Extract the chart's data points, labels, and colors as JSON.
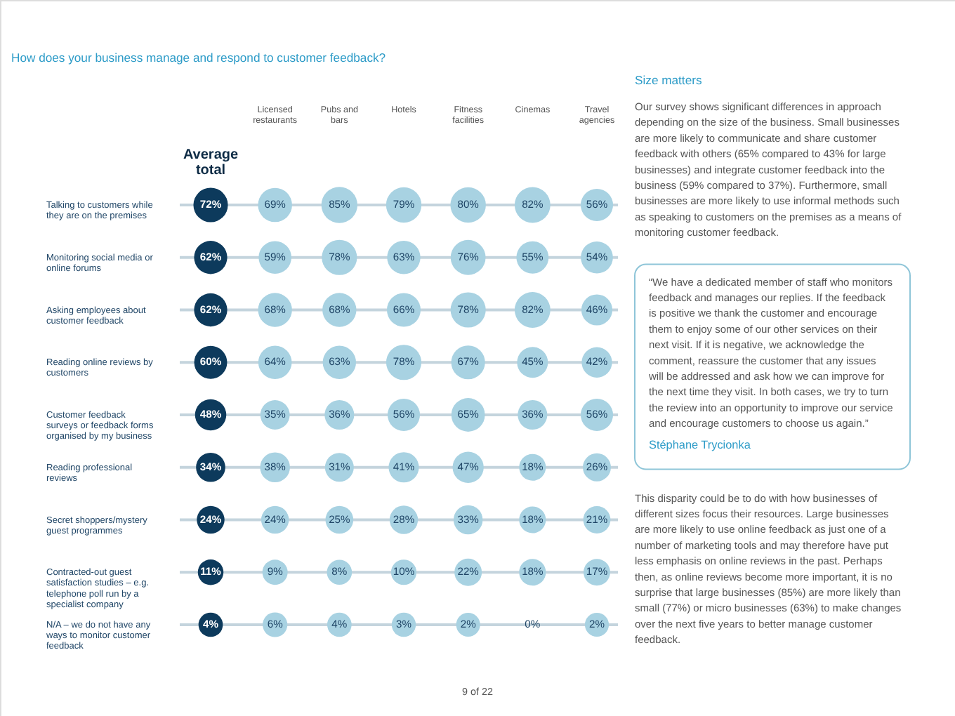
{
  "chart_data": [
    {
      "type": "heatmap",
      "title": "How does your business manage and respond to customer feedback?",
      "categories": [
        "Average total",
        "Licensed restaurants",
        "Pubs and bars",
        "Hotels",
        "Fitness facilities",
        "Cinemas",
        "Travel agencies"
      ],
      "y_categories": [
        "Talking to customers while they are on the premises",
        "Monitoring social media or online forums",
        "Asking employees about customer feedback",
        "Reading online reviews by customers",
        "Customer feedback surveys or feedback forms organised by my business",
        "Reading professional reviews",
        "Secret shoppers/mystery guest programmes",
        "Contracted-out guest satisfaction studies – e.g. telephone poll run by a specialist company",
        "N/A – we do not have any ways to monitor customer feedback"
      ],
      "cells": [
        [
          72,
          69,
          85,
          79,
          80,
          82,
          56
        ],
        [
          62,
          59,
          78,
          63,
          76,
          55,
          54
        ],
        [
          62,
          68,
          68,
          66,
          78,
          82,
          46
        ],
        [
          60,
          64,
          63,
          78,
          67,
          45,
          42
        ],
        [
          48,
          35,
          36,
          56,
          65,
          36,
          56
        ],
        [
          34,
          38,
          31,
          41,
          47,
          18,
          26
        ],
        [
          24,
          24,
          25,
          28,
          33,
          18,
          21
        ],
        [
          11,
          9,
          8,
          10,
          22,
          18,
          17
        ],
        [
          4,
          6,
          4,
          3,
          2,
          0,
          2
        ]
      ],
      "cell_labels": [
        [
          "72%",
          "69%",
          "85%",
          "79%",
          "80%",
          "82%",
          "56%"
        ],
        [
          "62%",
          "59%",
          "78%",
          "63%",
          "76%",
          "55%",
          "54%"
        ],
        [
          "62%",
          "68%",
          "68%",
          "66%",
          "78%",
          "82%",
          "46%"
        ],
        [
          "60%",
          "64%",
          "63%",
          "78%",
          "67%",
          "45%",
          "42%"
        ],
        [
          "48%",
          "35%",
          "36%",
          "56%",
          "65%",
          "36%",
          "56%"
        ],
        [
          "34%",
          "38%",
          "31%",
          "41%",
          "47%",
          "18%",
          "26%"
        ],
        [
          "24%",
          "24%",
          "25%",
          "28%",
          "33%",
          "18%",
          "21%"
        ],
        [
          "11%",
          "9%",
          "8%",
          "10%",
          "22%",
          "18%",
          "17%"
        ],
        [
          "4%",
          "6%",
          "4%",
          "3%",
          "2%",
          "0%",
          "2%"
        ]
      ],
      "colors": [
        "#0d3a5c",
        "#a8d2e2",
        "#a8d2e2",
        "#a8d2e2",
        "#a8d2e2",
        "#a8d2e2",
        "#a8d2e2"
      ],
      "grid": "y",
      "annotations": [
        "9 of 22"
      ]
    },
    {
      "type": "other",
      "title": "Size matters",
      "annotations": [
        "Our survey shows significant differences in approach depending on the size of the business. Small businesses are more likely to communicate and share customer feedback with others (65% compared to 43% for large businesses) and integrate customer feedback into the business (59% compared to 37%). Furthermore, small businesses are more likely to use informal methods such as speaking to customers on the premises as a means of monitoring customer feedback.",
        "“We have a dedicated member of staff who monitors feedback and manages our replies. If the feedback is positive we thank the customer and encourage them to enjoy some of our other services on their next visit. If it is negative, we acknowledge the comment, reassure the customer that any issues will be addressed and ask how we can improve for the next time they visit. In both cases, we try to turn the review into an opportunity to improve our service and encourage customers to choose us again.”",
        "Stéphane Trycionka",
        "This disparity could be to do with how businesses of different sizes focus their resources. Large businesses are more likely to use online feedback as just one of a number of marketing tools and may therefore have put less emphasis on online reviews in the past. Perhaps then, as online reviews become more important, it is no surprise that large businesses (85%) are more likely than small (77%) or micro businesses (63%) to make changes over the next five years to better manage customer feedback."
      ]
    }
  ]
}
